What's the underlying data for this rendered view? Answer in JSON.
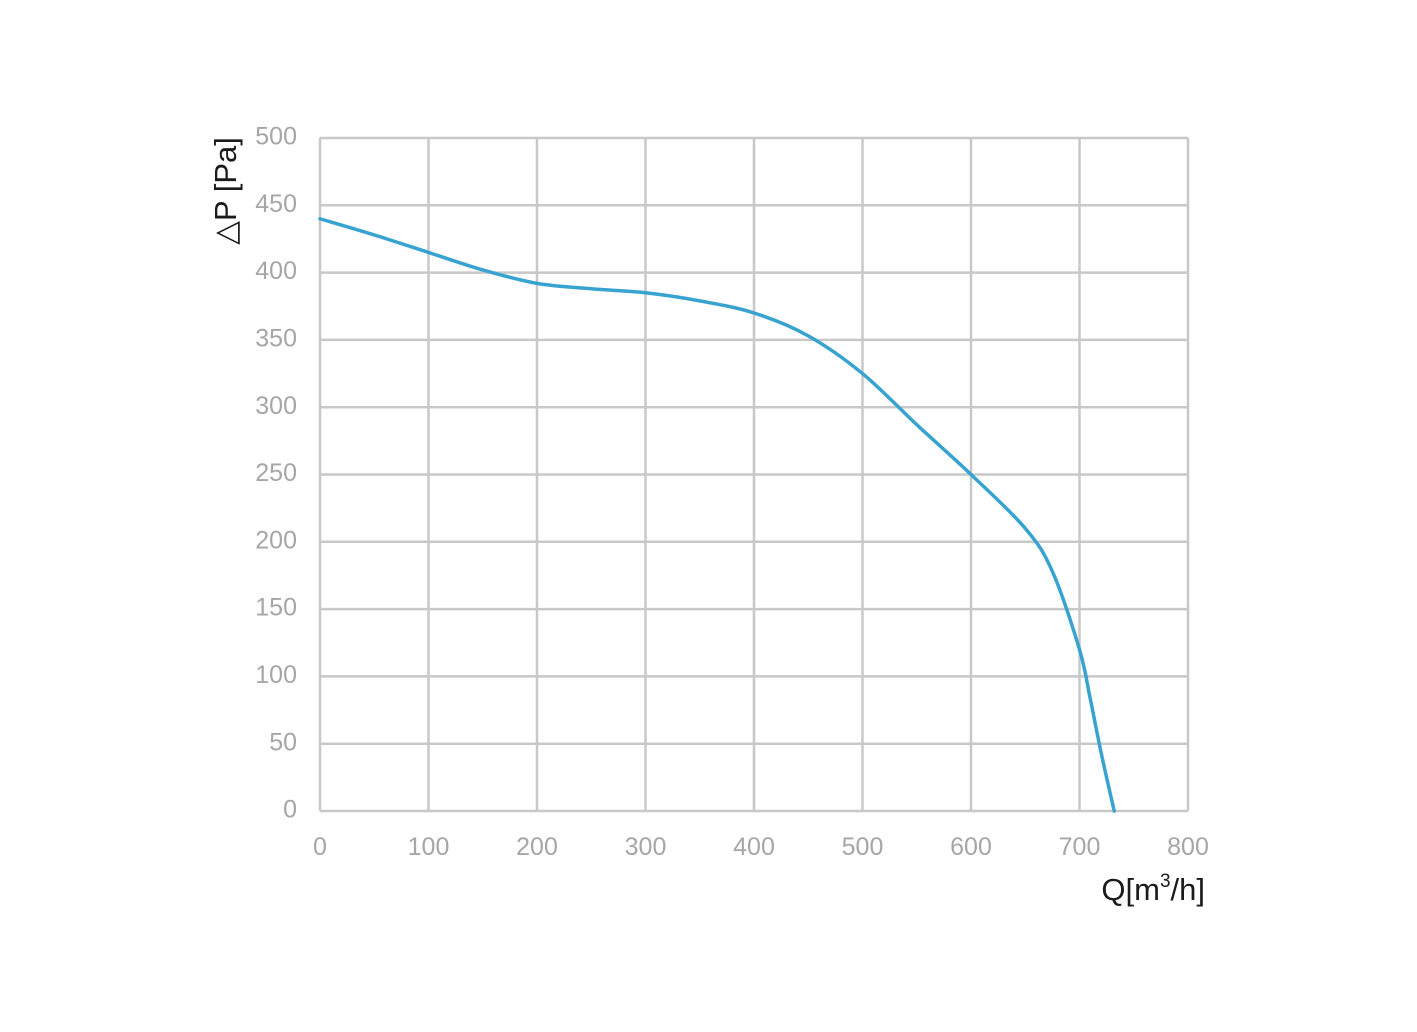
{
  "chart_data": {
    "type": "line",
    "title": "",
    "xlabel_main": "Q[m",
    "xlabel_sup": "3",
    "xlabel_tail": "/h]",
    "ylabel": "△P [Pa]",
    "xlim": [
      0,
      800
    ],
    "ylim": [
      0,
      500
    ],
    "x_ticks": [
      0,
      100,
      200,
      300,
      400,
      500,
      600,
      700,
      800
    ],
    "y_ticks": [
      0,
      50,
      100,
      150,
      200,
      250,
      300,
      350,
      400,
      450,
      500
    ],
    "grid": true,
    "legend": "none",
    "colors": {
      "series": "#38a3d1",
      "grid": "#c8c8c8",
      "tick_labels": "#a6a6a6",
      "axis_title": "#1a1a1a"
    },
    "series": [
      {
        "x": [
          0,
          50,
          100,
          150,
          200,
          250,
          300,
          350,
          400,
          450,
          500,
          550,
          600,
          650,
          675,
          700,
          710,
          720,
          732
        ],
        "y": [
          440,
          428,
          415,
          402,
          392,
          388,
          385,
          379,
          370,
          353,
          325,
          287,
          250,
          210,
          178,
          120,
          83,
          43,
          0
        ]
      }
    ]
  }
}
